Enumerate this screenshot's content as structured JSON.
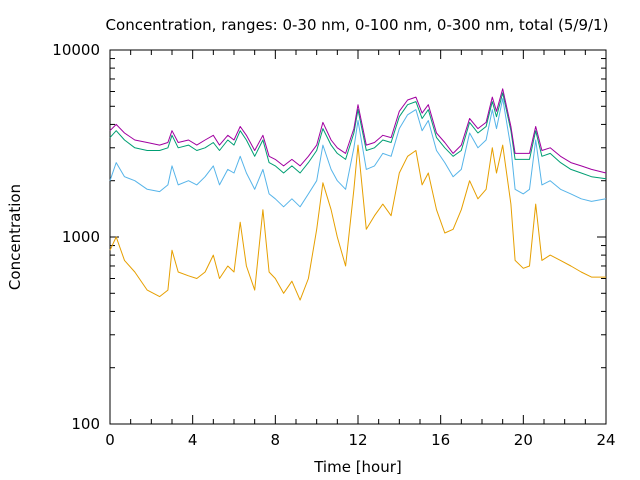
{
  "chart_data": {
    "type": "line",
    "title": "Concentration, ranges: 0-30 nm, 0-100 nm, 0-300 nm, total (5/9/1)",
    "xlabel": "Time [hour]",
    "ylabel": "Concentration",
    "xlim": [
      0,
      24
    ],
    "ylim": [
      100,
      10000
    ],
    "yscale": "log",
    "grid": false,
    "legend": "none",
    "x_ticks": [
      "0",
      "4",
      "8",
      "12",
      "16",
      "20",
      "24"
    ],
    "y_ticks": [
      "100",
      "1000",
      "10000"
    ],
    "series": [
      {
        "color": "#a000a0",
        "points": [
          [
            0,
            3700
          ],
          [
            0.3,
            4000
          ],
          [
            0.7,
            3600
          ],
          [
            1.2,
            3300
          ],
          [
            1.8,
            3200
          ],
          [
            2.4,
            3100
          ],
          [
            2.8,
            3200
          ],
          [
            3.0,
            3700
          ],
          [
            3.3,
            3200
          ],
          [
            3.8,
            3300
          ],
          [
            4.2,
            3100
          ],
          [
            4.6,
            3300
          ],
          [
            5.0,
            3500
          ],
          [
            5.3,
            3100
          ],
          [
            5.7,
            3500
          ],
          [
            6.0,
            3300
          ],
          [
            6.3,
            3900
          ],
          [
            6.6,
            3500
          ],
          [
            7.0,
            2900
          ],
          [
            7.4,
            3500
          ],
          [
            7.7,
            2700
          ],
          [
            8.0,
            2600
          ],
          [
            8.4,
            2400
          ],
          [
            8.8,
            2600
          ],
          [
            9.2,
            2400
          ],
          [
            9.6,
            2700
          ],
          [
            10.0,
            3100
          ],
          [
            10.3,
            4100
          ],
          [
            10.7,
            3300
          ],
          [
            11.0,
            3000
          ],
          [
            11.4,
            2800
          ],
          [
            11.8,
            3800
          ],
          [
            12.0,
            5100
          ],
          [
            12.4,
            3100
          ],
          [
            12.8,
            3200
          ],
          [
            13.2,
            3500
          ],
          [
            13.6,
            3400
          ],
          [
            14.0,
            4700
          ],
          [
            14.4,
            5400
          ],
          [
            14.8,
            5600
          ],
          [
            15.1,
            4600
          ],
          [
            15.4,
            5100
          ],
          [
            15.8,
            3600
          ],
          [
            16.2,
            3200
          ],
          [
            16.6,
            2800
          ],
          [
            17.0,
            3100
          ],
          [
            17.4,
            4300
          ],
          [
            17.8,
            3800
          ],
          [
            18.2,
            4100
          ],
          [
            18.5,
            5600
          ],
          [
            18.7,
            4700
          ],
          [
            19.0,
            6200
          ],
          [
            19.4,
            3900
          ],
          [
            19.6,
            2800
          ],
          [
            20.0,
            2800
          ],
          [
            20.3,
            2800
          ],
          [
            20.6,
            3900
          ],
          [
            20.9,
            2900
          ],
          [
            21.3,
            3000
          ],
          [
            21.8,
            2700
          ],
          [
            22.3,
            2500
          ],
          [
            22.8,
            2400
          ],
          [
            23.3,
            2300
          ],
          [
            24,
            2200
          ]
        ]
      },
      {
        "color": "#009e73",
        "points": [
          [
            0,
            3400
          ],
          [
            0.3,
            3700
          ],
          [
            0.7,
            3300
          ],
          [
            1.2,
            3000
          ],
          [
            1.8,
            2900
          ],
          [
            2.4,
            2900
          ],
          [
            2.8,
            3000
          ],
          [
            3.0,
            3500
          ],
          [
            3.3,
            3000
          ],
          [
            3.8,
            3100
          ],
          [
            4.2,
            2900
          ],
          [
            4.6,
            3000
          ],
          [
            5.0,
            3200
          ],
          [
            5.3,
            2900
          ],
          [
            5.7,
            3300
          ],
          [
            6.0,
            3100
          ],
          [
            6.3,
            3700
          ],
          [
            6.6,
            3300
          ],
          [
            7.0,
            2700
          ],
          [
            7.4,
            3300
          ],
          [
            7.7,
            2500
          ],
          [
            8.0,
            2400
          ],
          [
            8.4,
            2200
          ],
          [
            8.8,
            2400
          ],
          [
            9.2,
            2200
          ],
          [
            9.6,
            2500
          ],
          [
            10.0,
            2900
          ],
          [
            10.3,
            3800
          ],
          [
            10.7,
            3100
          ],
          [
            11.0,
            2800
          ],
          [
            11.4,
            2600
          ],
          [
            11.8,
            3600
          ],
          [
            12.0,
            4800
          ],
          [
            12.4,
            2900
          ],
          [
            12.8,
            3000
          ],
          [
            13.2,
            3300
          ],
          [
            13.6,
            3200
          ],
          [
            14.0,
            4400
          ],
          [
            14.4,
            5100
          ],
          [
            14.8,
            5300
          ],
          [
            15.1,
            4300
          ],
          [
            15.4,
            4800
          ],
          [
            15.8,
            3400
          ],
          [
            16.2,
            3000
          ],
          [
            16.6,
            2700
          ],
          [
            17.0,
            2900
          ],
          [
            17.4,
            4100
          ],
          [
            17.8,
            3600
          ],
          [
            18.2,
            3900
          ],
          [
            18.5,
            5300
          ],
          [
            18.7,
            4400
          ],
          [
            19.0,
            5900
          ],
          [
            19.4,
            3700
          ],
          [
            19.6,
            2600
          ],
          [
            20.0,
            2600
          ],
          [
            20.3,
            2600
          ],
          [
            20.6,
            3700
          ],
          [
            20.9,
            2700
          ],
          [
            21.3,
            2800
          ],
          [
            21.8,
            2500
          ],
          [
            22.3,
            2300
          ],
          [
            22.8,
            2200
          ],
          [
            23.3,
            2100
          ],
          [
            24,
            2050
          ]
        ]
      },
      {
        "color": "#56b4e9",
        "points": [
          [
            0,
            2000
          ],
          [
            0.3,
            2500
          ],
          [
            0.7,
            2100
          ],
          [
            1.2,
            2000
          ],
          [
            1.8,
            1800
          ],
          [
            2.4,
            1750
          ],
          [
            2.8,
            1900
          ],
          [
            3.0,
            2400
          ],
          [
            3.3,
            1900
          ],
          [
            3.8,
            2000
          ],
          [
            4.2,
            1900
          ],
          [
            4.6,
            2100
          ],
          [
            5.0,
            2400
          ],
          [
            5.3,
            1900
          ],
          [
            5.7,
            2300
          ],
          [
            6.0,
            2200
          ],
          [
            6.3,
            2700
          ],
          [
            6.6,
            2200
          ],
          [
            7.0,
            1800
          ],
          [
            7.4,
            2300
          ],
          [
            7.7,
            1700
          ],
          [
            8.0,
            1600
          ],
          [
            8.4,
            1450
          ],
          [
            8.8,
            1600
          ],
          [
            9.2,
            1450
          ],
          [
            9.6,
            1700
          ],
          [
            10.0,
            2000
          ],
          [
            10.3,
            3100
          ],
          [
            10.7,
            2300
          ],
          [
            11.0,
            2000
          ],
          [
            11.4,
            1800
          ],
          [
            11.8,
            3000
          ],
          [
            12.0,
            4200
          ],
          [
            12.4,
            2300
          ],
          [
            12.8,
            2400
          ],
          [
            13.2,
            2800
          ],
          [
            13.6,
            2700
          ],
          [
            14.0,
            3800
          ],
          [
            14.4,
            4500
          ],
          [
            14.8,
            4800
          ],
          [
            15.1,
            3700
          ],
          [
            15.4,
            4200
          ],
          [
            15.8,
            2900
          ],
          [
            16.2,
            2500
          ],
          [
            16.6,
            2100
          ],
          [
            17.0,
            2300
          ],
          [
            17.4,
            3600
          ],
          [
            17.8,
            3000
          ],
          [
            18.2,
            3300
          ],
          [
            18.5,
            4800
          ],
          [
            18.7,
            3800
          ],
          [
            19.0,
            5500
          ],
          [
            19.4,
            3000
          ],
          [
            19.6,
            1800
          ],
          [
            20.0,
            1700
          ],
          [
            20.3,
            1800
          ],
          [
            20.6,
            3300
          ],
          [
            20.9,
            1900
          ],
          [
            21.3,
            2000
          ],
          [
            21.8,
            1800
          ],
          [
            22.3,
            1700
          ],
          [
            22.8,
            1600
          ],
          [
            23.3,
            1550
          ],
          [
            24,
            1600
          ]
        ]
      },
      {
        "color": "#e69f00",
        "points": [
          [
            0,
            850
          ],
          [
            0.3,
            1000
          ],
          [
            0.7,
            750
          ],
          [
            1.2,
            650
          ],
          [
            1.8,
            520
          ],
          [
            2.4,
            480
          ],
          [
            2.8,
            520
          ],
          [
            3.0,
            850
          ],
          [
            3.3,
            650
          ],
          [
            3.8,
            620
          ],
          [
            4.2,
            600
          ],
          [
            4.6,
            650
          ],
          [
            5.0,
            800
          ],
          [
            5.3,
            600
          ],
          [
            5.7,
            700
          ],
          [
            6.0,
            650
          ],
          [
            6.3,
            1200
          ],
          [
            6.6,
            700
          ],
          [
            7.0,
            520
          ],
          [
            7.4,
            1400
          ],
          [
            7.7,
            650
          ],
          [
            8.0,
            600
          ],
          [
            8.4,
            500
          ],
          [
            8.8,
            580
          ],
          [
            9.2,
            460
          ],
          [
            9.6,
            600
          ],
          [
            10.0,
            1100
          ],
          [
            10.3,
            1950
          ],
          [
            10.7,
            1400
          ],
          [
            11.0,
            1000
          ],
          [
            11.4,
            700
          ],
          [
            11.8,
            1800
          ],
          [
            12.0,
            3100
          ],
          [
            12.4,
            1100
          ],
          [
            12.8,
            1300
          ],
          [
            13.2,
            1500
          ],
          [
            13.6,
            1300
          ],
          [
            14.0,
            2200
          ],
          [
            14.4,
            2700
          ],
          [
            14.8,
            2900
          ],
          [
            15.1,
            1900
          ],
          [
            15.4,
            2200
          ],
          [
            15.8,
            1400
          ],
          [
            16.2,
            1050
          ],
          [
            16.6,
            1100
          ],
          [
            17.0,
            1400
          ],
          [
            17.4,
            2000
          ],
          [
            17.8,
            1600
          ],
          [
            18.2,
            1800
          ],
          [
            18.5,
            3000
          ],
          [
            18.7,
            2200
          ],
          [
            19.0,
            3100
          ],
          [
            19.4,
            1500
          ],
          [
            19.6,
            750
          ],
          [
            20.0,
            680
          ],
          [
            20.3,
            700
          ],
          [
            20.6,
            1500
          ],
          [
            20.9,
            750
          ],
          [
            21.3,
            800
          ],
          [
            21.8,
            750
          ],
          [
            22.3,
            700
          ],
          [
            22.8,
            650
          ],
          [
            23.3,
            610
          ],
          [
            24,
            610
          ]
        ]
      }
    ]
  }
}
